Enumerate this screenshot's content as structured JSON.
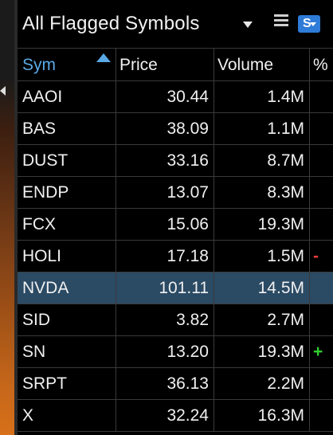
{
  "panel": {
    "title": "All Flagged Symbols",
    "badge_letter": "S",
    "badge_color": "#2e7bd8"
  },
  "columns": {
    "sym": "Sym",
    "price": "Price",
    "volume": "Volume",
    "pct": "%"
  },
  "sort": {
    "column": "Sym",
    "direction": "ascending"
  },
  "rows": [
    {
      "sym": "AAOI",
      "price": "30.44",
      "volume": "1.4M",
      "chg": ""
    },
    {
      "sym": "BAS",
      "price": "38.09",
      "volume": "1.1M",
      "chg": ""
    },
    {
      "sym": "DUST",
      "price": "33.16",
      "volume": "8.7M",
      "chg": ""
    },
    {
      "sym": "ENDP",
      "price": "13.07",
      "volume": "8.3M",
      "chg": ""
    },
    {
      "sym": "FCX",
      "price": "15.06",
      "volume": "19.3M",
      "chg": ""
    },
    {
      "sym": "HOLI",
      "price": "17.18",
      "volume": "1.5M",
      "chg": "-"
    },
    {
      "sym": "NVDA",
      "price": "101.11",
      "volume": "14.5M",
      "chg": ""
    },
    {
      "sym": "SID",
      "price": "3.82",
      "volume": "2.7M",
      "chg": ""
    },
    {
      "sym": "SN",
      "price": "13.20",
      "volume": "19.3M",
      "chg": "+"
    },
    {
      "sym": "SRPT",
      "price": "36.13",
      "volume": "2.2M",
      "chg": ""
    },
    {
      "sym": "X",
      "price": "32.24",
      "volume": "16.3M",
      "chg": ""
    }
  ],
  "selected_row": "NVDA",
  "colors": {
    "selected_row_bg": "#2b4a64",
    "sort_header": "#5aa9e6",
    "negative": "#e83b3b",
    "positive": "#2fd12f"
  }
}
